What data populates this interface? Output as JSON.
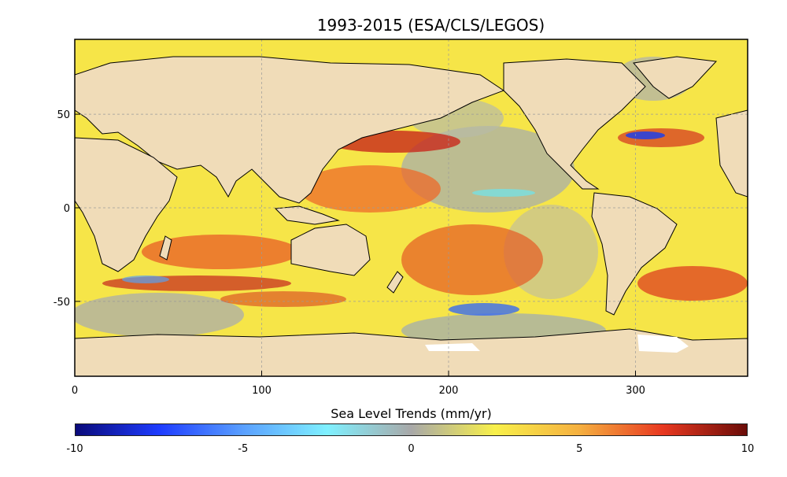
{
  "title": "1993-2015 (ESA/CLS/LEGOS)",
  "colorbar": {
    "label": "Sea Level Trends (mm/yr)",
    "range": [
      -10,
      10
    ],
    "ticks": [
      {
        "value": -10,
        "label": "-10"
      },
      {
        "value": -5,
        "label": "-5"
      },
      {
        "value": 0,
        "label": "0"
      },
      {
        "value": 5,
        "label": "5"
      },
      {
        "value": 10,
        "label": "10"
      }
    ],
    "stops": [
      "#0a0a7a",
      "#1e3cff",
      "#5aa0ff",
      "#7ff0ff",
      "#a8a8a8",
      "#f8f04a",
      "#f5b040",
      "#e83820",
      "#6a0c08"
    ]
  },
  "map": {
    "x_range": [
      0,
      360
    ],
    "y_range": [
      -90,
      90
    ],
    "x_ticks": [
      {
        "value": 0,
        "label": "0"
      },
      {
        "value": 100,
        "label": "100"
      },
      {
        "value": 200,
        "label": "200"
      },
      {
        "value": 300,
        "label": "300"
      }
    ],
    "y_ticks": [
      {
        "value": 50,
        "label": "50"
      },
      {
        "value": 0,
        "label": "0"
      },
      {
        "value": -50,
        "label": "-50"
      }
    ],
    "grid": true,
    "land_color": "#f0dcb8",
    "ocean_base_color": "#f8e84a"
  }
}
